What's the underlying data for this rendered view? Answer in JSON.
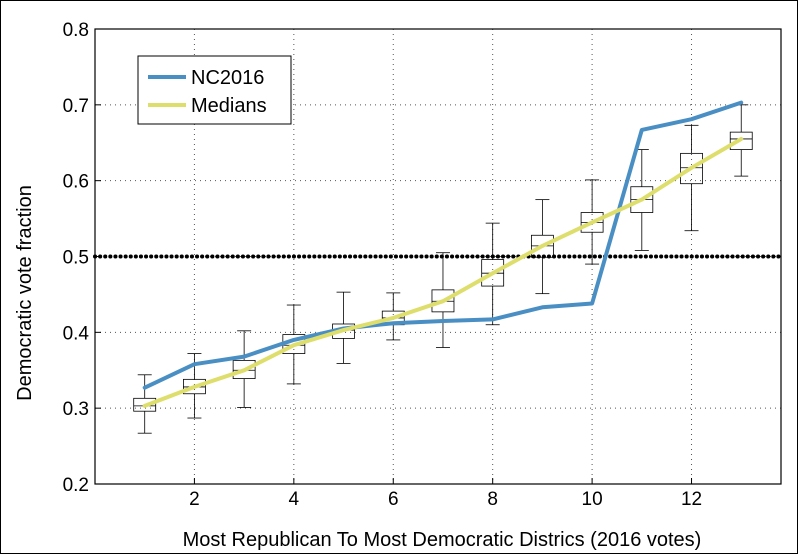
{
  "chart_data": {
    "type": "line",
    "xlabel": "Most Republican To Most Democratic Districs (2016 votes)",
    "ylabel": "Democratic vote fraction",
    "xlim": [
      0,
      13.8
    ],
    "ylim": [
      0.2,
      0.8
    ],
    "x_ticks": [
      2,
      4,
      6,
      8,
      10,
      12
    ],
    "x_tick_labels": [
      "2",
      "4",
      "6",
      "8",
      "10",
      "12"
    ],
    "y_ticks": [
      0.2,
      0.3,
      0.4,
      0.5,
      0.6,
      0.7,
      0.8
    ],
    "y_tick_labels": [
      "0.2",
      "0.3",
      "0.4",
      "0.5",
      "0.6",
      "0.7",
      "0.8"
    ],
    "grid": true,
    "legend_position": "top-left",
    "reference_line": {
      "y": 0.5,
      "style": "dotted"
    },
    "series": [
      {
        "name": "NC2016",
        "color": "#4a8fc4",
        "x": [
          1,
          2,
          3,
          4,
          5,
          6,
          7,
          8,
          9,
          10,
          11,
          12,
          13
        ],
        "values": [
          0.327,
          0.358,
          0.368,
          0.39,
          0.405,
          0.412,
          0.415,
          0.417,
          0.433,
          0.438,
          0.667,
          0.681,
          0.703
        ]
      },
      {
        "name": "Medians",
        "color": "#dede6c",
        "x": [
          1,
          2,
          3,
          4,
          5,
          6,
          7,
          8,
          9,
          10,
          11,
          12,
          13
        ],
        "values": [
          0.303,
          0.328,
          0.35,
          0.383,
          0.403,
          0.419,
          0.441,
          0.478,
          0.514,
          0.545,
          0.575,
          0.617,
          0.655
        ]
      }
    ],
    "boxplots": [
      {
        "x": 1,
        "whisker_low": 0.267,
        "q1": 0.296,
        "median": 0.303,
        "q3": 0.313,
        "whisker_high": 0.344
      },
      {
        "x": 2,
        "whisker_low": 0.287,
        "q1": 0.319,
        "median": 0.328,
        "q3": 0.338,
        "whisker_high": 0.372
      },
      {
        "x": 3,
        "whisker_low": 0.301,
        "q1": 0.339,
        "median": 0.35,
        "q3": 0.363,
        "whisker_high": 0.402
      },
      {
        "x": 4,
        "whisker_low": 0.332,
        "q1": 0.372,
        "median": 0.383,
        "q3": 0.397,
        "whisker_high": 0.436
      },
      {
        "x": 5,
        "whisker_low": 0.359,
        "q1": 0.392,
        "median": 0.403,
        "q3": 0.411,
        "whisker_high": 0.453
      },
      {
        "x": 6,
        "whisker_low": 0.39,
        "q1": 0.41,
        "median": 0.419,
        "q3": 0.428,
        "whisker_high": 0.452
      },
      {
        "x": 7,
        "whisker_low": 0.38,
        "q1": 0.427,
        "median": 0.441,
        "q3": 0.456,
        "whisker_high": 0.505
      },
      {
        "x": 8,
        "whisker_low": 0.41,
        "q1": 0.461,
        "median": 0.478,
        "q3": 0.496,
        "whisker_high": 0.544
      },
      {
        "x": 9,
        "whisker_low": 0.451,
        "q1": 0.499,
        "median": 0.514,
        "q3": 0.528,
        "whisker_high": 0.575
      },
      {
        "x": 10,
        "whisker_low": 0.49,
        "q1": 0.532,
        "median": 0.545,
        "q3": 0.558,
        "whisker_high": 0.601
      },
      {
        "x": 11,
        "whisker_low": 0.508,
        "q1": 0.558,
        "median": 0.575,
        "q3": 0.592,
        "whisker_high": 0.641
      },
      {
        "x": 12,
        "whisker_low": 0.534,
        "q1": 0.596,
        "median": 0.617,
        "q3": 0.636,
        "whisker_high": 0.673
      },
      {
        "x": 13,
        "whisker_low": 0.606,
        "q1": 0.641,
        "median": 0.655,
        "q3": 0.664,
        "whisker_high": 0.7
      }
    ]
  }
}
